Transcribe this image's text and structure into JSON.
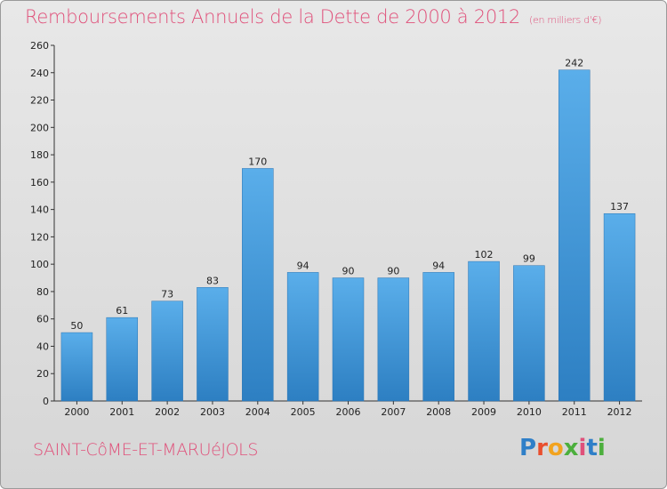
{
  "header": {
    "title": "Remboursements Annuels de la Dette de 2000 à 2012",
    "subtitle": "(en milliers d'€)"
  },
  "footer": {
    "commune": "SAINT-CôME-ET-MARUéJOLS",
    "logo_letters": [
      "P",
      "r",
      "o",
      "x",
      "i",
      "t",
      "i"
    ],
    "logo_colors": [
      "#2f7fc8",
      "#e94f2e",
      "#f2a31f",
      "#4caf3d",
      "#e0507a",
      "#2f7fc8",
      "#4caf3d"
    ]
  },
  "chart_data": {
    "type": "bar",
    "title": "Remboursements Annuels de la Dette de 2000 à 2012",
    "subtitle": "(en milliers d'€)",
    "categories": [
      "2000",
      "2001",
      "2002",
      "2003",
      "2004",
      "2005",
      "2006",
      "2007",
      "2008",
      "2009",
      "2010",
      "2011",
      "2012"
    ],
    "values": [
      50,
      61,
      73,
      83,
      170,
      94,
      90,
      90,
      94,
      102,
      99,
      242,
      137
    ],
    "ylim": [
      0,
      260
    ],
    "yticks": [
      0,
      20,
      40,
      60,
      80,
      100,
      120,
      140,
      160,
      180,
      200,
      220,
      240,
      260
    ],
    "grid": false,
    "bar_color": "#4a9fe0"
  }
}
